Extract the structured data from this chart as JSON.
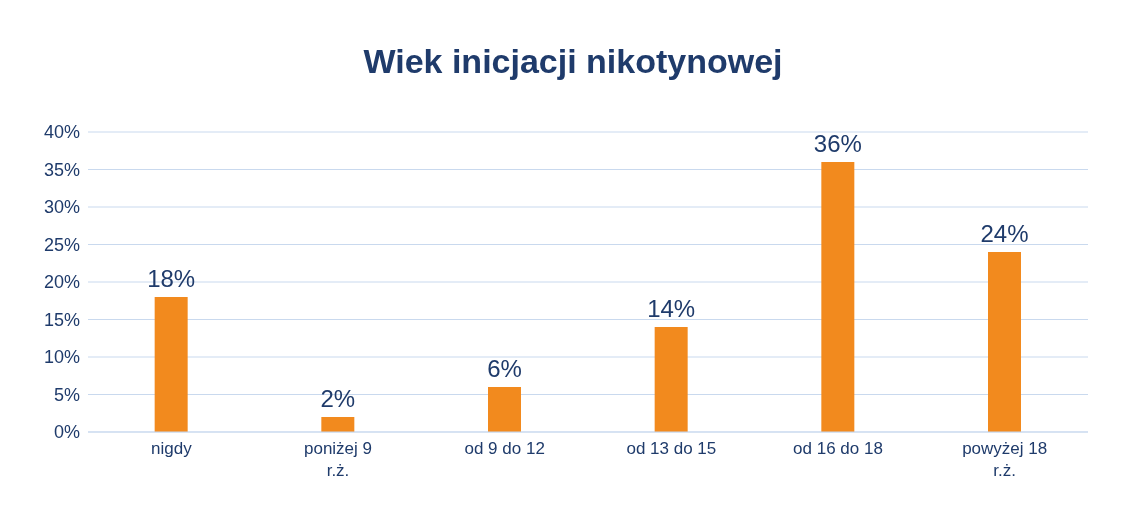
{
  "chart_data": {
    "type": "bar",
    "title": "Wiek inicjacji nikotynowej",
    "categories": [
      "nigdy",
      "poniżej 9 r.ż.",
      "od 9 do 12",
      "od 13 do 15",
      "od 16 do 18",
      "powyżej 18 r.ż."
    ],
    "values": [
      18,
      2,
      6,
      14,
      36,
      24
    ],
    "value_labels": [
      "18%",
      "2%",
      "6%",
      "14%",
      "36%",
      "24%"
    ],
    "color": "#f28a1e",
    "ylim": [
      0,
      40
    ],
    "yticks": [
      {
        "value": 0,
        "label": "0%"
      },
      {
        "value": 5,
        "label": "5%"
      },
      {
        "value": 10,
        "label": "10%"
      },
      {
        "value": 15,
        "label": "15%"
      },
      {
        "value": 20,
        "label": "20%"
      },
      {
        "value": 25,
        "label": "25%"
      },
      {
        "value": 30,
        "label": "30%"
      },
      {
        "value": 35,
        "label": "35%"
      },
      {
        "value": 40,
        "label": "40%"
      }
    ],
    "grid": "y"
  }
}
